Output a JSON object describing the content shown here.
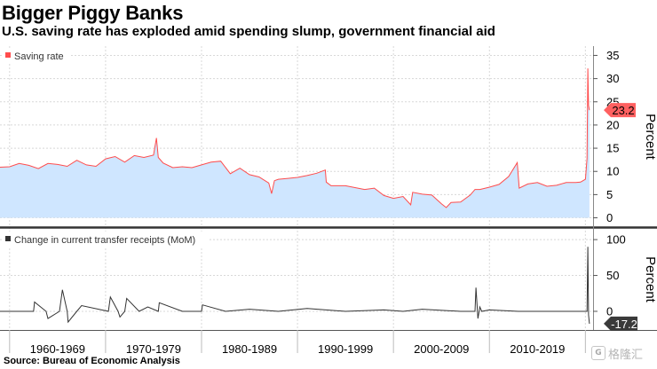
{
  "header": {
    "title": "Bigger Piggy Banks",
    "subtitle": "U.S. saving rate has exploded amid spending slump, government financial aid"
  },
  "footer": {
    "source": "Source: Bureau of Economic Analysis"
  },
  "watermark": {
    "text": "格隆汇"
  },
  "colors": {
    "saving_line": "#ff4c4c",
    "saving_fill": "#cfe6ff",
    "transfer_line": "#333333",
    "callout_red": "#ff6060",
    "callout_gray": "#3a3a3a",
    "divider": "#333333",
    "grid": "#d8d8d8"
  },
  "chart_data": [
    {
      "type": "area",
      "panel": "top",
      "legend": "Saving rate",
      "ylabel": "Percent",
      "ylim": [
        -2,
        37
      ],
      "yticks": [
        "0",
        "5",
        "10",
        "15",
        "20",
        "25",
        "30",
        "35"
      ],
      "ytick_values": [
        0,
        5,
        10,
        15,
        20,
        25,
        30,
        35
      ],
      "last_value_label": "23.2",
      "series": [
        {
          "name": "Saving rate",
          "x": [
            1959.0,
            1960.0,
            1961.0,
            1962.0,
            1963.0,
            1964.0,
            1965.0,
            1966.0,
            1967.0,
            1968.0,
            1969.0,
            1970.0,
            1971.0,
            1972.0,
            1973.0,
            1974.0,
            1975.0,
            1975.3,
            1975.5,
            1976.0,
            1977.0,
            1978.0,
            1979.0,
            1980.0,
            1981.0,
            1982.0,
            1983.0,
            1984.0,
            1985.0,
            1986.0,
            1987.0,
            1987.3,
            1987.6,
            1988.0,
            1989.0,
            1990.0,
            1991.0,
            1992.0,
            1992.9,
            1993.0,
            1993.5,
            1994.0,
            1995.0,
            1996.0,
            1997.0,
            1998.0,
            1999.0,
            2000.0,
            2001.0,
            2001.8,
            2002.0,
            2003.0,
            2004.0,
            2005.0,
            2005.5,
            2006.0,
            2007.0,
            2008.0,
            2008.5,
            2009.0,
            2010.0,
            2011.0,
            2012.0,
            2012.9,
            2013.1,
            2014.0,
            2015.0,
            2016.0,
            2017.0,
            2018.0,
            2019.0,
            2019.5,
            2020.0,
            2020.17,
            2020.25,
            2020.33,
            2020.42
          ],
          "values": [
            10.9,
            11.0,
            11.7,
            11.3,
            10.6,
            11.7,
            11.5,
            11.1,
            12.4,
            11.4,
            11.1,
            12.7,
            13.2,
            12.0,
            13.4,
            13.0,
            13.5,
            17.2,
            13.0,
            11.8,
            10.8,
            11.0,
            10.8,
            11.4,
            12.0,
            12.2,
            9.5,
            10.7,
            9.3,
            8.8,
            7.5,
            5.2,
            8.0,
            8.3,
            8.5,
            8.7,
            9.1,
            9.6,
            10.3,
            7.7,
            6.9,
            6.9,
            6.9,
            6.5,
            6.1,
            6.4,
            4.8,
            4.2,
            4.6,
            2.8,
            5.5,
            5.1,
            4.9,
            3.0,
            2.2,
            3.3,
            3.4,
            4.9,
            6.1,
            6.1,
            6.6,
            7.2,
            8.9,
            11.9,
            6.4,
            7.3,
            7.6,
            6.8,
            7.0,
            7.6,
            7.6,
            7.7,
            8.3,
            12.8,
            32.2,
            24.2,
            23.2
          ]
        }
      ]
    },
    {
      "type": "line",
      "panel": "bottom",
      "legend": "Change in current transfer receipts (MoM)",
      "ylabel": "Percent",
      "ylim": [
        -26,
        115
      ],
      "yticks": [
        "0",
        "50",
        "100"
      ],
      "ytick_values": [
        0,
        50,
        100
      ],
      "last_value_label": "-17.2",
      "xlabels": [
        "1960-1969",
        "1970-1979",
        "1980-1989",
        "1990-1999",
        "2000-2009",
        "2010-2019"
      ],
      "series": [
        {
          "name": "Change in current transfer receipts (MoM)",
          "x": [
            1959.0,
            1962.5,
            1962.6,
            1963.8,
            1964.0,
            1965.2,
            1965.5,
            1966.0,
            1966.1,
            1967.0,
            1967.5,
            1970.3,
            1970.5,
            1971.3,
            1971.5,
            1972.0,
            1972.2,
            1973.5,
            1974.4,
            1975.5,
            1975.6,
            1978.0,
            1980.0,
            1980.1,
            1982.5,
            1985.0,
            1988.0,
            1991.0,
            1995.0,
            1999.0,
            2001.0,
            2003.0,
            2007.0,
            2008.5,
            2008.6,
            2008.8,
            2009.0,
            2009.2,
            2010.0,
            2013.0,
            2016.0,
            2019.0,
            2020.0,
            2020.17,
            2020.25,
            2020.33,
            2020.42
          ],
          "values": [
            0,
            0,
            13,
            0,
            -10,
            0,
            30,
            0,
            -15,
            0,
            8,
            0,
            20,
            0,
            -8,
            0,
            18,
            0,
            6,
            0,
            12,
            0,
            0,
            9,
            0,
            3,
            0,
            4,
            0,
            2,
            0,
            3,
            0,
            0,
            33,
            -10,
            6,
            0,
            2,
            0,
            0,
            0,
            0,
            0,
            90,
            -5,
            -17.2
          ]
        }
      ]
    }
  ]
}
